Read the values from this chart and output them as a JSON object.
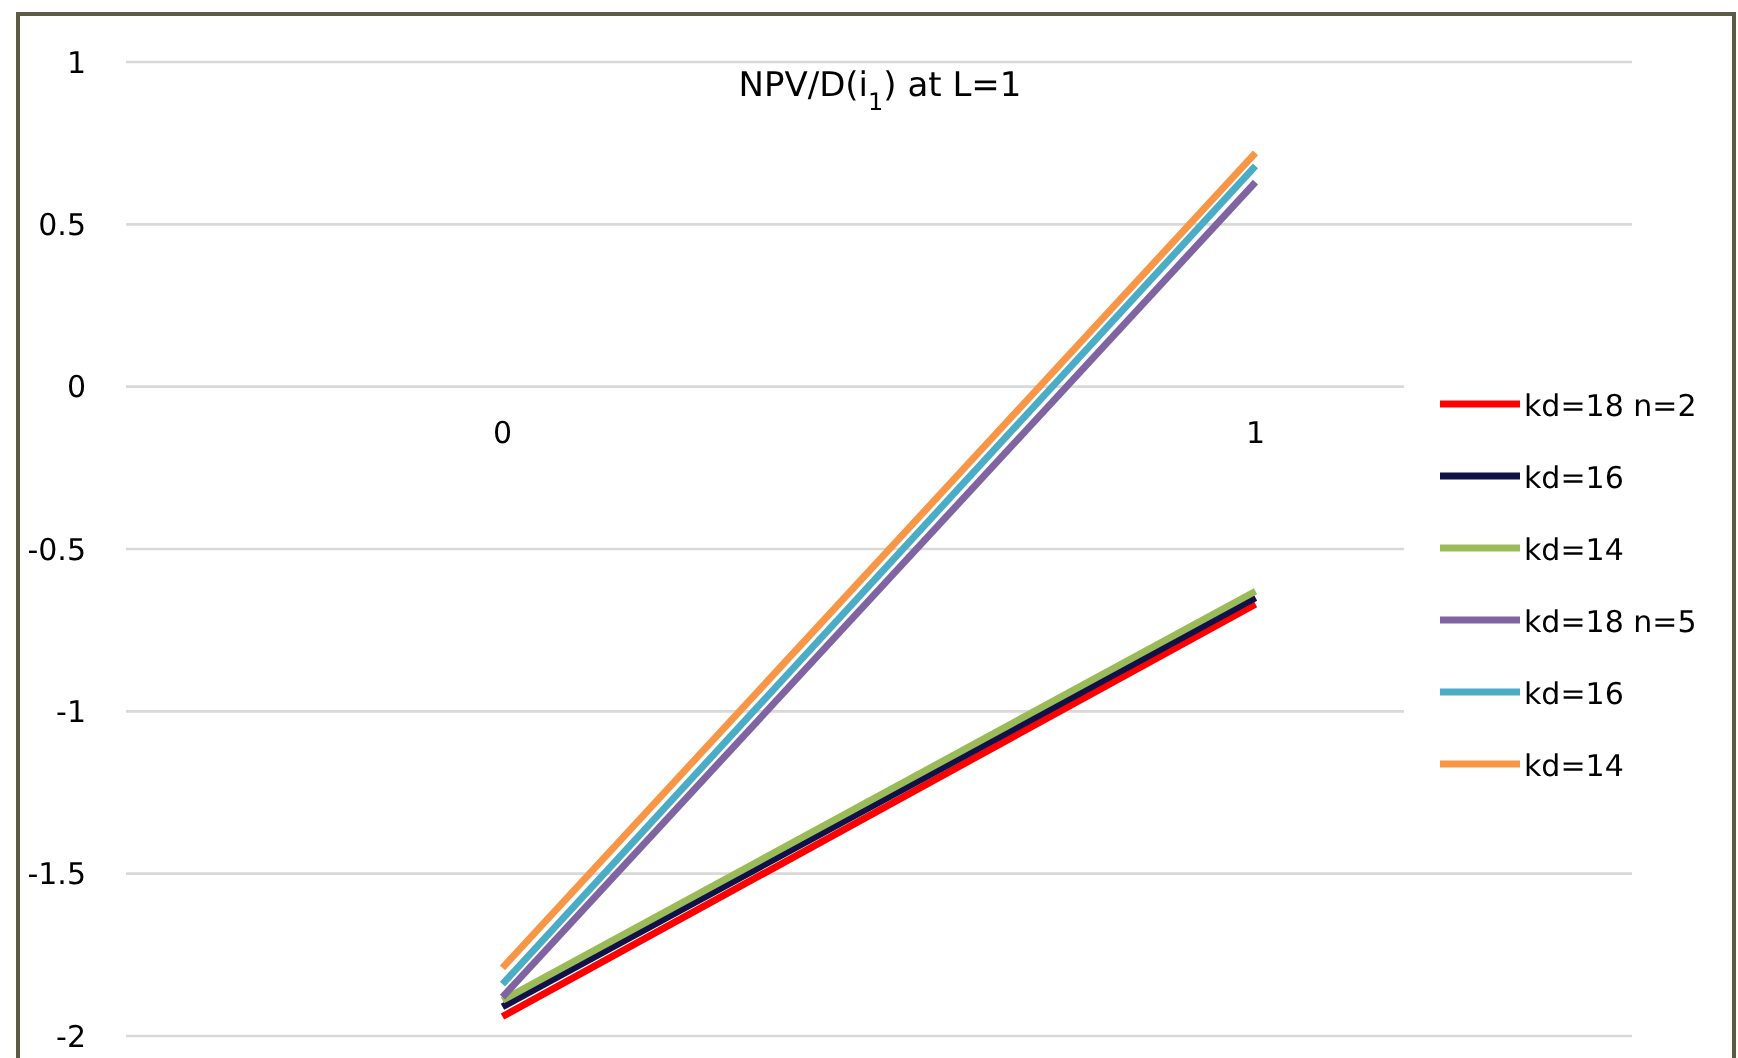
{
  "chart_data": {
    "type": "line",
    "title": "NPV/D(i$_{1}$) at L=1",
    "x": [
      0,
      1
    ],
    "xlim": [
      -0.5,
      1.5
    ],
    "xticks": [
      0,
      1
    ],
    "series": [
      {
        "name": "kd=18 n=2",
        "color": "#ff0000",
        "values": [
          -1.94,
          -0.67
        ]
      },
      {
        "name": "kd=16",
        "color": "#0f1148",
        "values": [
          -1.91,
          -0.65
        ]
      },
      {
        "name": "kd=14",
        "color": "#9bbb59",
        "values": [
          -1.89,
          -0.63
        ]
      },
      {
        "name": "kd=18 n=5",
        "color": "#8064a2",
        "values": [
          -1.88,
          0.63
        ]
      },
      {
        "name": "kd=16",
        "color": "#4bacc6",
        "values": [
          -1.84,
          0.68
        ]
      },
      {
        "name": "kd=14",
        "color": "#f79646",
        "values": [
          -1.79,
          0.72
        ]
      }
    ],
    "ylim": [
      -2,
      1
    ],
    "yticks": [
      -2,
      -1.5,
      -1,
      -0.5,
      0,
      0.5,
      1
    ],
    "grid": "y",
    "legend": "right",
    "marker": "none",
    "line_style": "solid"
  }
}
